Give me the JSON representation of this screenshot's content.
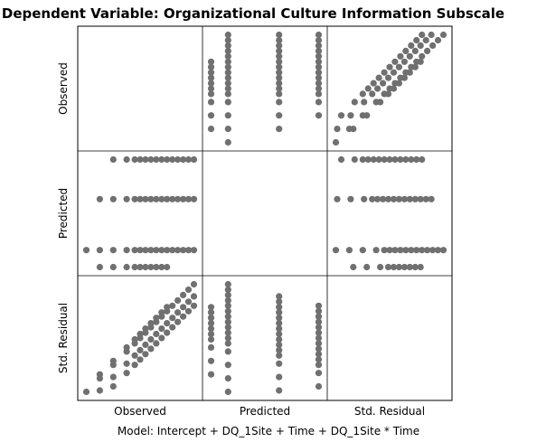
{
  "chart_data": {
    "type": "scatter-matrix",
    "title": "Dependent Variable: Organizational Culture Information Subscale",
    "footnote": "Model: Intercept + DQ_1Site + Time + DQ_1Site * Time",
    "variables": [
      "Observed",
      "Predicted",
      "Std. Residual"
    ],
    "grid": false,
    "point_color": "#707070",
    "observed_levels": [
      1.0,
      1.5,
      2.0,
      2.5,
      2.8,
      3.0,
      3.2,
      3.4,
      3.6,
      3.8,
      4.0,
      4.2,
      4.4,
      4.6,
      4.8,
      5.0
    ],
    "predicted_levels": [
      2.95,
      3.1,
      3.55,
      3.9
    ],
    "residual_by_observed_offset": 1.9,
    "residual_by_observed_scale": 0.9,
    "groups": [
      {
        "predicted": 2.95,
        "observed": [
          1.5,
          2.0,
          2.5,
          2.8,
          3.0,
          3.2,
          3.4,
          3.6,
          3.8,
          4.0
        ]
      },
      {
        "predicted": 3.1,
        "observed": [
          1.0,
          1.5,
          2.0,
          2.5,
          2.8,
          3.0,
          3.2,
          3.4,
          3.6,
          3.8,
          4.0,
          4.2,
          4.4,
          4.6,
          4.8,
          5.0
        ]
      },
      {
        "predicted": 3.55,
        "observed": [
          1.5,
          2.0,
          2.5,
          2.8,
          3.0,
          3.2,
          3.4,
          3.6,
          3.8,
          4.0,
          4.2,
          4.4,
          4.6,
          4.8,
          5.0
        ]
      },
      {
        "predicted": 3.9,
        "observed": [
          2.0,
          2.5,
          2.8,
          3.0,
          3.2,
          3.4,
          3.6,
          3.8,
          4.0,
          4.2,
          4.4,
          4.6,
          4.8,
          5.0
        ]
      }
    ]
  }
}
